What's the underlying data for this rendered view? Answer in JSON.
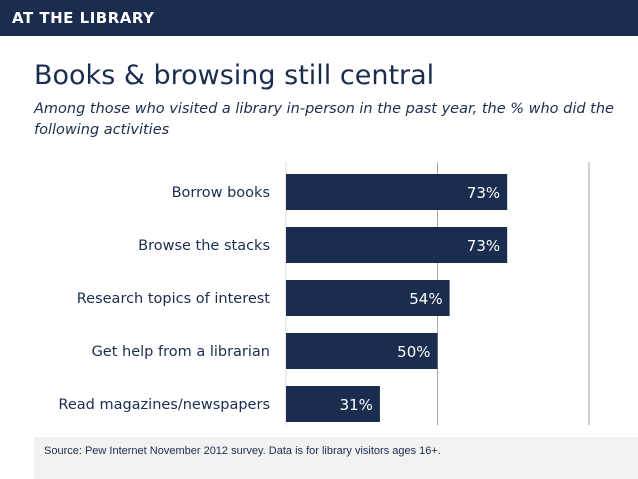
{
  "header": {
    "label": "AT THE LIBRARY"
  },
  "title": "Books & browsing still central",
  "subtitle": "Among those who visited a library in-person in the past year, the % who did the following activities",
  "source": "Source: Pew Internet November 2012 survey. Data is for library visitors ages 16+.",
  "colors": {
    "bar": "#1b2d4f",
    "header": "#1b2d4f",
    "grid": "#a6a6a6",
    "text": "#1b2d4f"
  },
  "chart_data": {
    "type": "bar",
    "orientation": "horizontal",
    "title": "Books & browsing still central",
    "xlabel": "",
    "ylabel": "",
    "xlim": [
      0,
      100
    ],
    "grid": true,
    "unit": "%",
    "categories": [
      "Borrow books",
      "Browse the stacks",
      "Research topics of interest",
      "Get help from a librarian",
      "Read magazines/newspapers"
    ],
    "values": [
      73,
      73,
      54,
      50,
      31
    ],
    "labels": [
      "73%",
      "73%",
      "54%",
      "50%",
      "31%"
    ]
  }
}
